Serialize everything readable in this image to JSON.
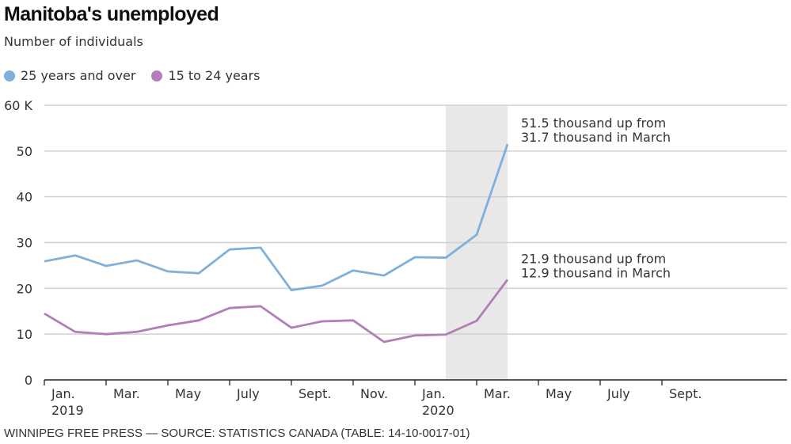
{
  "header": {
    "title": "Manitoba's unemployed",
    "subtitle": "Number of individuals"
  },
  "footer": {
    "source": "WINNIPEG FREE PRESS — SOURCE: STATISTICS CANADA (TABLE: 14-10-0017-01)"
  },
  "chart_data": {
    "type": "line",
    "title": "Manitoba's unemployed",
    "subtitle": "Number of individuals",
    "xlabel": "",
    "ylabel": "",
    "ylim": [
      0,
      60
    ],
    "yticks": [
      0,
      10,
      20,
      30,
      40,
      50,
      60
    ],
    "ytick_labels": [
      "0",
      "10",
      "20",
      "30",
      "40",
      "50",
      "60 K"
    ],
    "x_range_months": [
      0,
      24
    ],
    "xticks": [
      {
        "month": 0,
        "label": "Jan.",
        "sublabel": "2019"
      },
      {
        "month": 2,
        "label": "Mar.",
        "sublabel": ""
      },
      {
        "month": 4,
        "label": "May",
        "sublabel": ""
      },
      {
        "month": 6,
        "label": "July",
        "sublabel": ""
      },
      {
        "month": 8,
        "label": "Sept.",
        "sublabel": ""
      },
      {
        "month": 10,
        "label": "Nov.",
        "sublabel": ""
      },
      {
        "month": 12,
        "label": "Jan.",
        "sublabel": "2020"
      },
      {
        "month": 14,
        "label": "Mar.",
        "sublabel": ""
      },
      {
        "month": 16,
        "label": "May",
        "sublabel": ""
      },
      {
        "month": 18,
        "label": "July",
        "sublabel": ""
      },
      {
        "month": 20,
        "label": "Sept.",
        "sublabel": ""
      }
    ],
    "x": [
      "2019-01",
      "2019-02",
      "2019-03",
      "2019-04",
      "2019-05",
      "2019-06",
      "2019-07",
      "2019-08",
      "2019-09",
      "2019-10",
      "2019-11",
      "2019-12",
      "2020-01",
      "2020-02",
      "2020-03",
      "2020-04"
    ],
    "series": [
      {
        "name": "25 years and over",
        "color": "#7eb0d9",
        "values": [
          25.9,
          27.2,
          24.9,
          26.1,
          23.7,
          23.3,
          28.5,
          28.9,
          19.6,
          20.6,
          23.9,
          22.8,
          26.8,
          26.7,
          31.7,
          51.5
        ]
      },
      {
        "name": "15 to 24 years",
        "color": "#b07fb5",
        "values": [
          14.5,
          10.5,
          10.0,
          10.5,
          11.9,
          13.0,
          15.7,
          16.1,
          11.4,
          12.8,
          13.0,
          8.3,
          9.7,
          9.9,
          12.9,
          21.9
        ]
      }
    ],
    "shaded_range_months": [
      13,
      15
    ],
    "shade_color": "#e8e8e8",
    "grid": true,
    "legend": "top-left",
    "annotations": [
      {
        "series": 0,
        "lines": [
          "51.5 thousand up from",
          "31.7 thousand in March"
        ]
      },
      {
        "series": 1,
        "lines": [
          "21.9 thousand up from",
          "12.9 thousand in March"
        ]
      }
    ]
  }
}
